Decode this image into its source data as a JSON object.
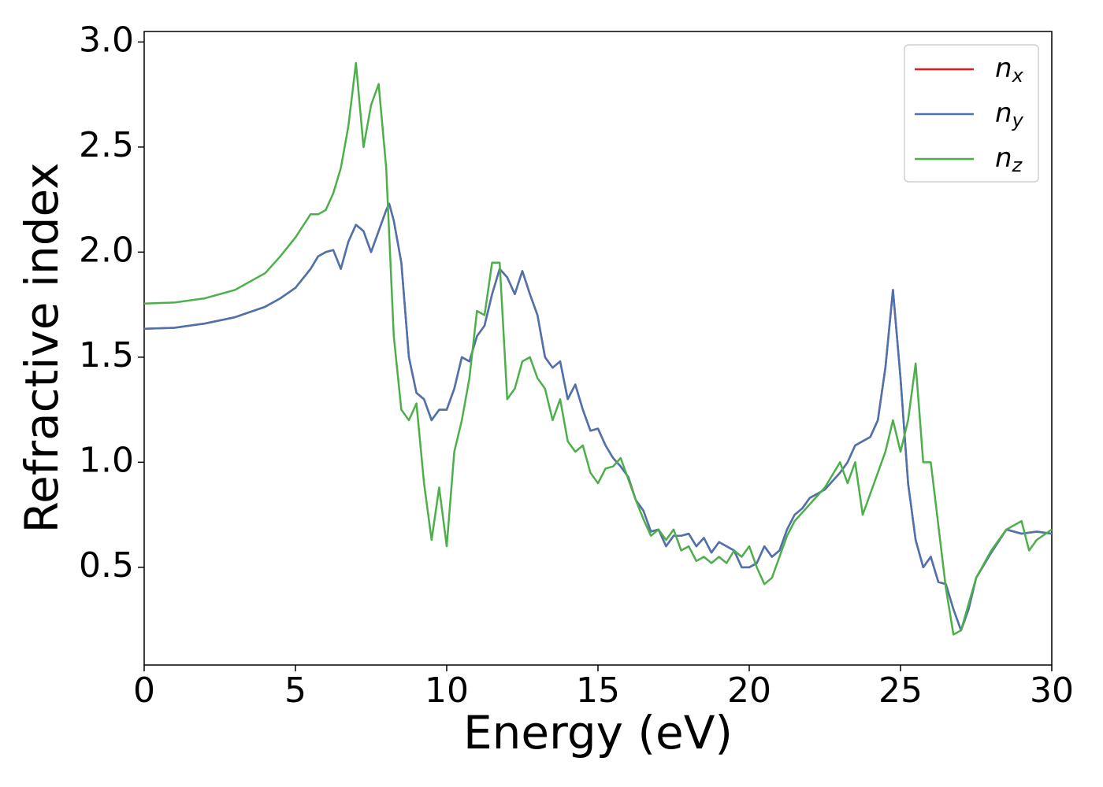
{
  "chart_data": {
    "type": "line",
    "xlabel": "Energy (eV)",
    "ylabel": "Refractive index",
    "xlim": [
      0,
      30
    ],
    "xticks": [
      0,
      5,
      10,
      15,
      20,
      25,
      30
    ],
    "ylim": [
      0.035,
      3.05
    ],
    "yticks": [
      0.5,
      {
        "value": 1.0,
        "label": "1.0"
      },
      1.5,
      {
        "value": 2.0,
        "label": "2.0"
      },
      2.5,
      {
        "value": 3.0,
        "label": "3.0"
      }
    ],
    "legend": "upper right",
    "series": [
      {
        "name": "n_x",
        "color": "#e41a1c",
        "x": [
          0,
          1,
          2,
          3,
          4,
          4.5,
          5,
          5.5,
          5.75,
          6,
          6.25,
          6.5,
          6.75,
          7,
          7.25,
          7.5,
          7.75,
          8,
          8.1,
          8.25,
          8.5,
          8.75,
          9,
          9.25,
          9.5,
          9.75,
          10,
          10.25,
          10.5,
          10.75,
          11,
          11.25,
          11.5,
          11.75,
          12,
          12.25,
          12.5,
          12.75,
          13,
          13.25,
          13.5,
          13.75,
          14,
          14.25,
          14.5,
          14.75,
          15,
          15.25,
          15.5,
          15.75,
          16,
          16.25,
          16.5,
          16.75,
          17,
          17.25,
          17.5,
          17.75,
          18,
          18.25,
          18.5,
          18.75,
          19,
          19.25,
          19.5,
          19.75,
          20,
          20.25,
          20.5,
          20.75,
          21,
          21.25,
          21.5,
          21.75,
          22,
          22.5,
          23,
          23.25,
          23.5,
          23.75,
          24,
          24.25,
          24.5,
          24.75,
          25,
          25.25,
          25.5,
          25.75,
          26,
          26.25,
          26.5,
          26.75,
          27,
          27.25,
          27.5,
          28,
          28.5,
          29,
          29.5,
          30
        ],
        "values": [
          1.635,
          1.64,
          1.66,
          1.69,
          1.74,
          1.78,
          1.83,
          1.92,
          1.98,
          2.0,
          2.01,
          1.92,
          2.05,
          2.13,
          2.1,
          2.0,
          2.1,
          2.2,
          2.23,
          2.15,
          1.95,
          1.5,
          1.33,
          1.3,
          1.2,
          1.25,
          1.25,
          1.35,
          1.5,
          1.48,
          1.6,
          1.65,
          1.8,
          1.92,
          1.88,
          1.8,
          1.91,
          1.8,
          1.7,
          1.5,
          1.45,
          1.48,
          1.3,
          1.37,
          1.25,
          1.15,
          1.16,
          1.08,
          1.02,
          0.98,
          0.93,
          0.82,
          0.77,
          0.67,
          0.68,
          0.6,
          0.65,
          0.65,
          0.66,
          0.6,
          0.64,
          0.57,
          0.62,
          0.6,
          0.58,
          0.5,
          0.5,
          0.52,
          0.6,
          0.55,
          0.58,
          0.68,
          0.75,
          0.78,
          0.83,
          0.87,
          0.95,
          1.0,
          1.08,
          1.1,
          1.12,
          1.2,
          1.45,
          1.82,
          1.4,
          0.9,
          0.63,
          0.5,
          0.55,
          0.43,
          0.42,
          0.3,
          0.2,
          0.3,
          0.45,
          0.57,
          0.68,
          0.66,
          0.67,
          0.66
        ]
      },
      {
        "name": "n_y",
        "color": "#4a74b0",
        "x": [
          0,
          1,
          2,
          3,
          4,
          4.5,
          5,
          5.5,
          5.75,
          6,
          6.25,
          6.5,
          6.75,
          7,
          7.25,
          7.5,
          7.75,
          8,
          8.1,
          8.25,
          8.5,
          8.75,
          9,
          9.25,
          9.5,
          9.75,
          10,
          10.25,
          10.5,
          10.75,
          11,
          11.25,
          11.5,
          11.75,
          12,
          12.25,
          12.5,
          12.75,
          13,
          13.25,
          13.5,
          13.75,
          14,
          14.25,
          14.5,
          14.75,
          15,
          15.25,
          15.5,
          15.75,
          16,
          16.25,
          16.5,
          16.75,
          17,
          17.25,
          17.5,
          17.75,
          18,
          18.25,
          18.5,
          18.75,
          19,
          19.25,
          19.5,
          19.75,
          20,
          20.25,
          20.5,
          20.75,
          21,
          21.25,
          21.5,
          21.75,
          22,
          22.5,
          23,
          23.25,
          23.5,
          23.75,
          24,
          24.25,
          24.5,
          24.75,
          25,
          25.25,
          25.5,
          25.75,
          26,
          26.25,
          26.5,
          26.75,
          27,
          27.25,
          27.5,
          28,
          28.5,
          29,
          29.5,
          30
        ],
        "values": [
          1.635,
          1.64,
          1.66,
          1.69,
          1.74,
          1.78,
          1.83,
          1.92,
          1.98,
          2.0,
          2.01,
          1.92,
          2.05,
          2.13,
          2.1,
          2.0,
          2.1,
          2.2,
          2.23,
          2.15,
          1.95,
          1.5,
          1.33,
          1.3,
          1.2,
          1.25,
          1.25,
          1.35,
          1.5,
          1.48,
          1.6,
          1.65,
          1.8,
          1.92,
          1.88,
          1.8,
          1.91,
          1.8,
          1.7,
          1.5,
          1.45,
          1.48,
          1.3,
          1.37,
          1.25,
          1.15,
          1.16,
          1.08,
          1.02,
          0.98,
          0.93,
          0.82,
          0.77,
          0.67,
          0.68,
          0.6,
          0.65,
          0.65,
          0.66,
          0.6,
          0.64,
          0.57,
          0.62,
          0.6,
          0.58,
          0.5,
          0.5,
          0.52,
          0.6,
          0.55,
          0.58,
          0.68,
          0.75,
          0.78,
          0.83,
          0.87,
          0.95,
          1.0,
          1.08,
          1.1,
          1.12,
          1.2,
          1.45,
          1.82,
          1.4,
          0.9,
          0.63,
          0.5,
          0.55,
          0.43,
          0.42,
          0.3,
          0.2,
          0.3,
          0.45,
          0.57,
          0.68,
          0.66,
          0.67,
          0.66
        ]
      },
      {
        "name": "n_z",
        "color": "#4daf4a",
        "x": [
          0,
          1,
          2,
          3,
          4,
          4.5,
          5,
          5.5,
          5.75,
          6,
          6.25,
          6.5,
          6.75,
          7,
          7.25,
          7.5,
          7.75,
          8,
          8.25,
          8.5,
          8.75,
          9,
          9.25,
          9.5,
          9.75,
          10,
          10.25,
          10.5,
          10.75,
          11,
          11.25,
          11.5,
          11.75,
          12,
          12.25,
          12.5,
          12.75,
          13,
          13.25,
          13.5,
          13.75,
          14,
          14.25,
          14.5,
          14.75,
          15,
          15.25,
          15.5,
          15.75,
          16,
          16.25,
          16.5,
          16.75,
          17,
          17.25,
          17.5,
          17.75,
          18,
          18.25,
          18.5,
          18.75,
          19,
          19.25,
          19.5,
          19.75,
          20,
          20.25,
          20.5,
          20.75,
          21,
          21.25,
          21.5,
          22,
          22.5,
          23,
          23.25,
          23.5,
          23.75,
          24,
          24.5,
          24.75,
          25,
          25.25,
          25.5,
          25.75,
          26,
          26.25,
          26.5,
          26.75,
          27,
          27.5,
          28,
          28.5,
          29,
          29.25,
          29.5,
          30
        ],
        "values": [
          1.755,
          1.76,
          1.78,
          1.82,
          1.9,
          1.98,
          2.07,
          2.18,
          2.18,
          2.2,
          2.28,
          2.4,
          2.6,
          2.9,
          2.5,
          2.7,
          2.8,
          2.4,
          1.6,
          1.25,
          1.2,
          1.28,
          0.9,
          0.63,
          0.88,
          0.6,
          1.05,
          1.2,
          1.4,
          1.72,
          1.7,
          1.95,
          1.95,
          1.3,
          1.35,
          1.48,
          1.5,
          1.4,
          1.35,
          1.2,
          1.3,
          1.1,
          1.05,
          1.08,
          0.95,
          0.9,
          0.97,
          0.98,
          1.02,
          0.92,
          0.82,
          0.73,
          0.65,
          0.68,
          0.63,
          0.68,
          0.58,
          0.6,
          0.53,
          0.55,
          0.52,
          0.55,
          0.52,
          0.58,
          0.55,
          0.6,
          0.5,
          0.42,
          0.45,
          0.55,
          0.65,
          0.72,
          0.8,
          0.88,
          1.0,
          0.9,
          1.0,
          0.75,
          0.85,
          1.05,
          1.2,
          1.05,
          1.2,
          1.47,
          1.0,
          1.0,
          0.7,
          0.4,
          0.18,
          0.2,
          0.45,
          0.58,
          0.68,
          0.72,
          0.58,
          0.63,
          0.68
        ]
      }
    ]
  }
}
